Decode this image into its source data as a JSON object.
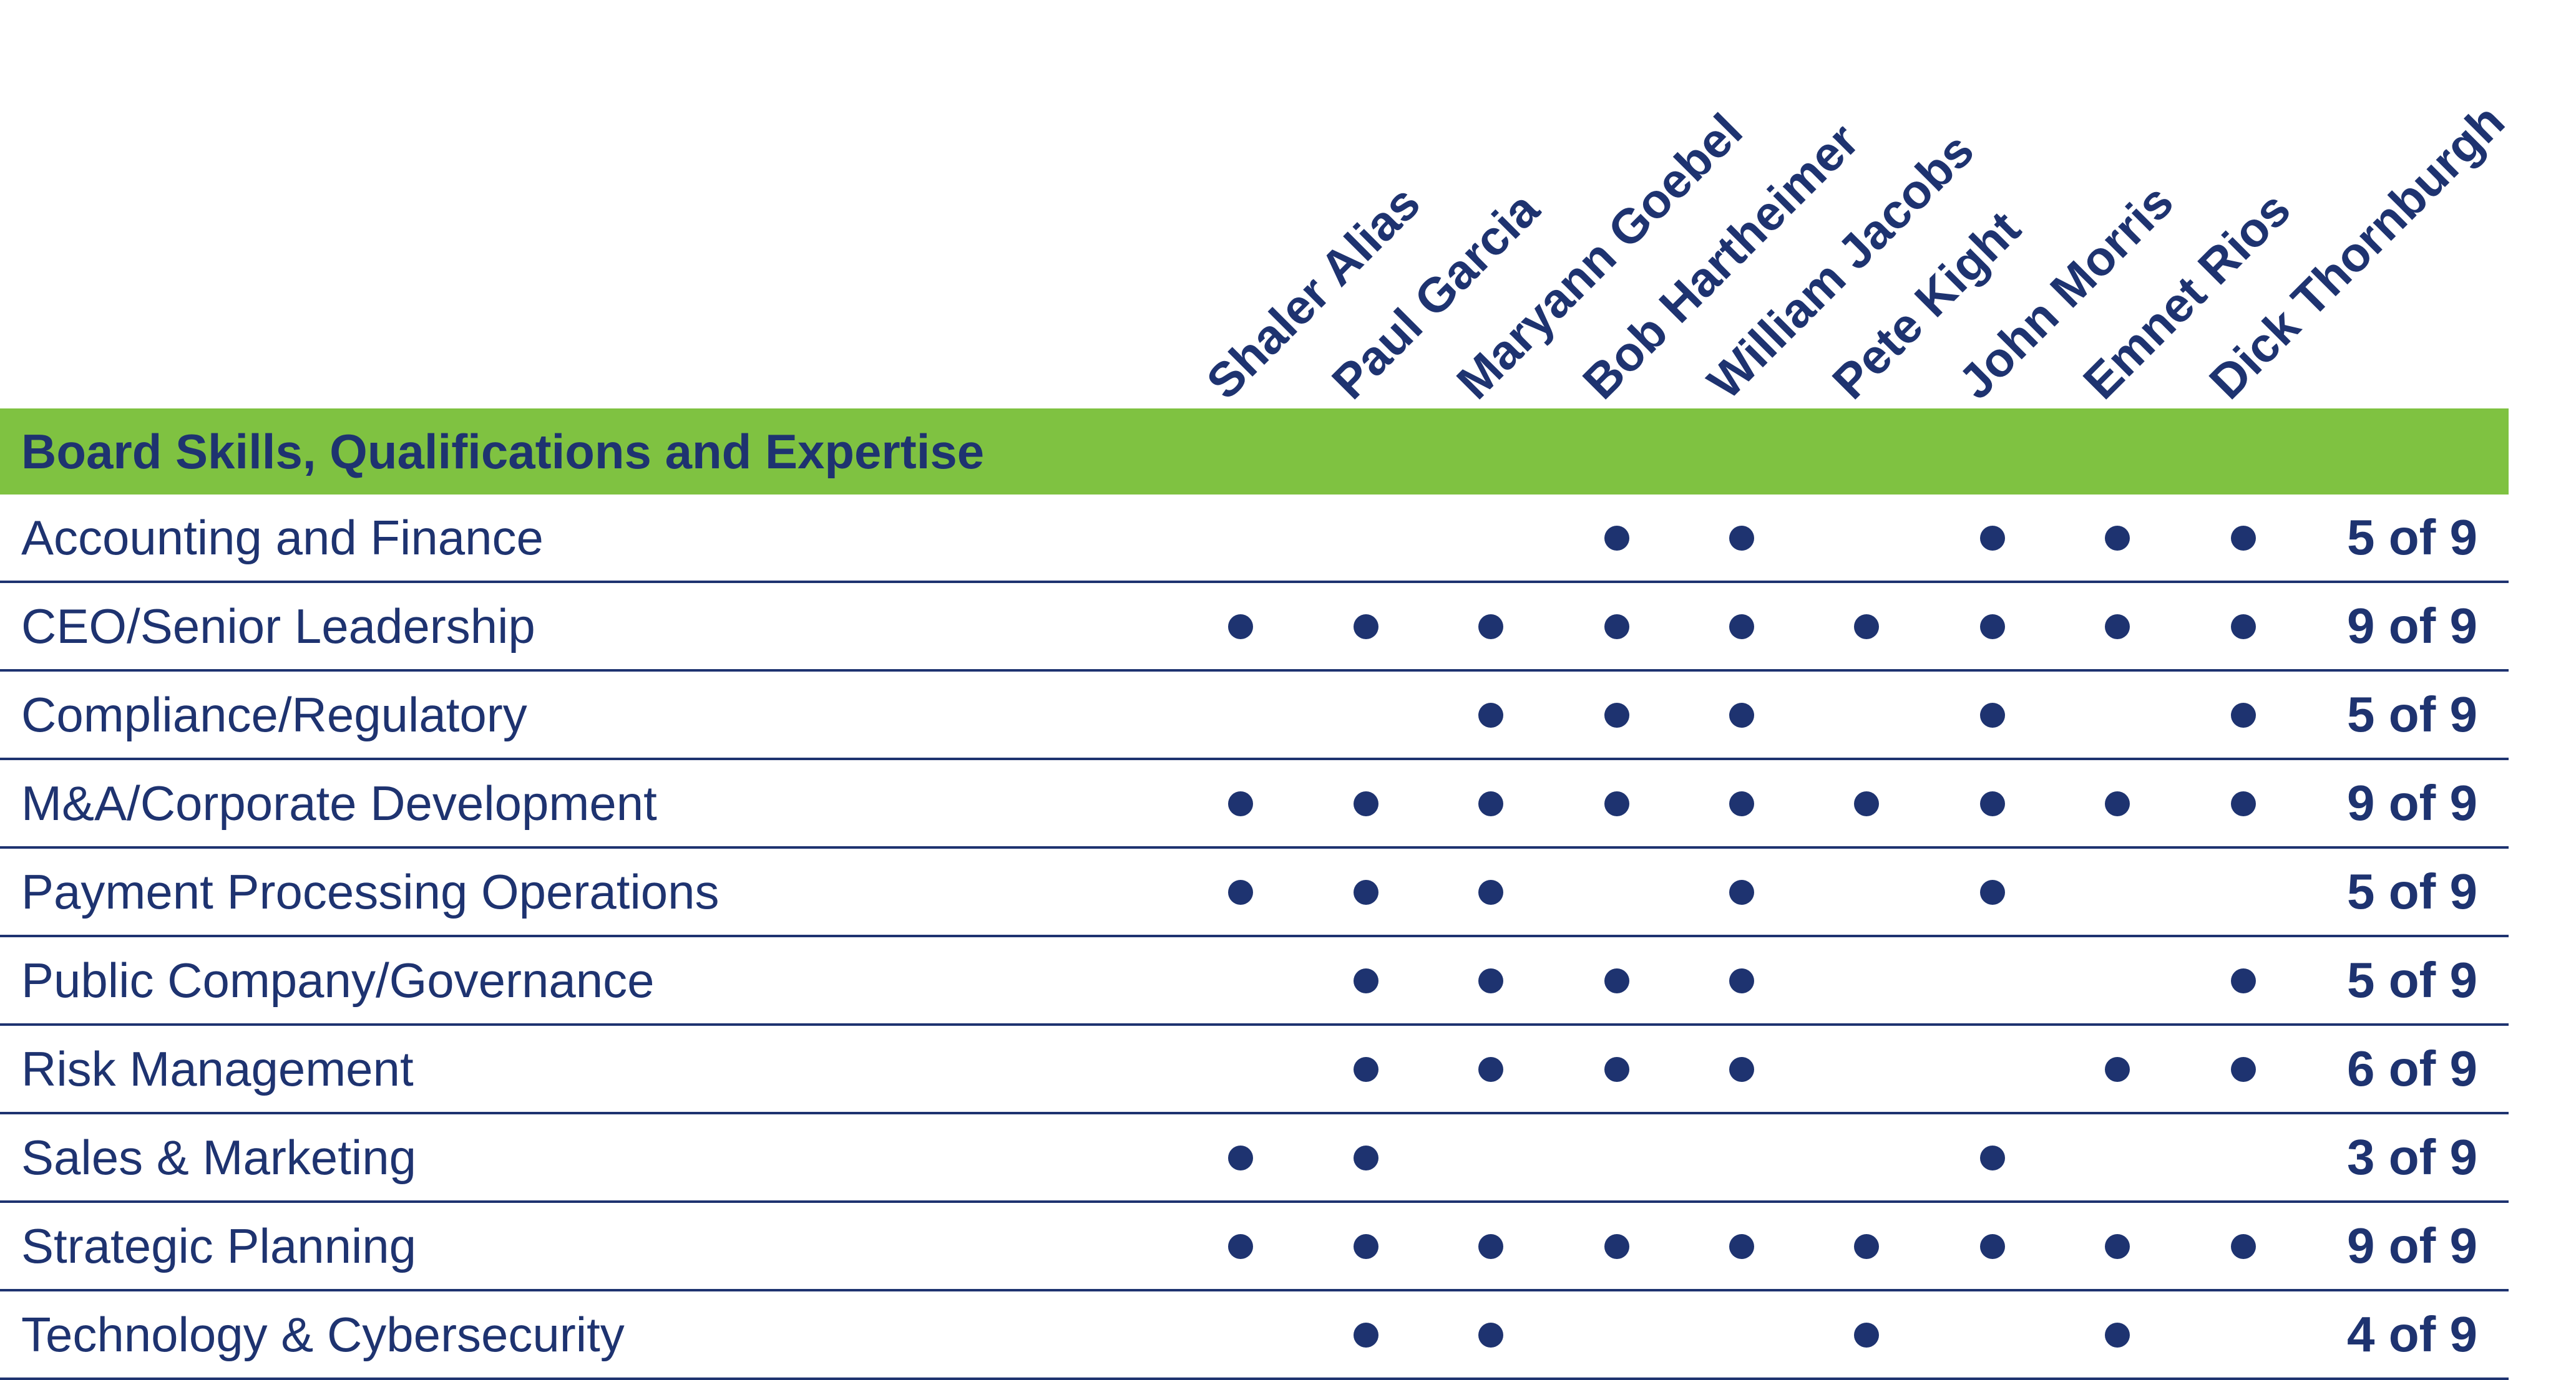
{
  "directors": [
    "Shaler Alias",
    "Paul Garcia",
    "Maryann Goebel",
    "Bob Hartheimer",
    "William Jacobs",
    "Pete Kight",
    "John Morris",
    "Emnet Rios",
    "Dick Thornburgh"
  ],
  "header": {
    "title": "Board Skills, Qualifications and Expertise"
  },
  "colors": {
    "navy": "#1e3370",
    "green": "#7fc241"
  },
  "rows": [
    {
      "skill": "Accounting and Finance",
      "marks": [
        false,
        false,
        false,
        true,
        true,
        false,
        true,
        true,
        true
      ],
      "count": "5 of 9"
    },
    {
      "skill": "CEO/Senior Leadership",
      "marks": [
        true,
        true,
        true,
        true,
        true,
        true,
        true,
        true,
        true
      ],
      "count": "9 of 9"
    },
    {
      "skill": "Compliance/Regulatory",
      "marks": [
        false,
        false,
        true,
        true,
        true,
        false,
        true,
        false,
        true
      ],
      "count": "5 of 9"
    },
    {
      "skill": "M&A/Corporate Development",
      "marks": [
        true,
        true,
        true,
        true,
        true,
        true,
        true,
        true,
        true
      ],
      "count": "9 of 9"
    },
    {
      "skill": "Payment Processing Operations",
      "marks": [
        true,
        true,
        true,
        false,
        true,
        false,
        true,
        false,
        false
      ],
      "count": "5 of 9"
    },
    {
      "skill": "Public Company/Governance",
      "marks": [
        false,
        true,
        true,
        true,
        true,
        false,
        false,
        false,
        true
      ],
      "count": "5 of 9"
    },
    {
      "skill": "Risk Management",
      "marks": [
        false,
        true,
        true,
        true,
        true,
        false,
        false,
        true,
        true
      ],
      "count": "6 of 9"
    },
    {
      "skill": "Sales & Marketing",
      "marks": [
        true,
        true,
        false,
        false,
        false,
        false,
        true,
        false,
        false
      ],
      "count": "3 of 9"
    },
    {
      "skill": "Strategic Planning",
      "marks": [
        true,
        true,
        true,
        true,
        true,
        true,
        true,
        true,
        true
      ],
      "count": "9 of 9"
    },
    {
      "skill": "Technology & Cybersecurity",
      "marks": [
        false,
        true,
        true,
        false,
        false,
        true,
        false,
        true,
        false
      ],
      "count": "4 of 9"
    }
  ]
}
